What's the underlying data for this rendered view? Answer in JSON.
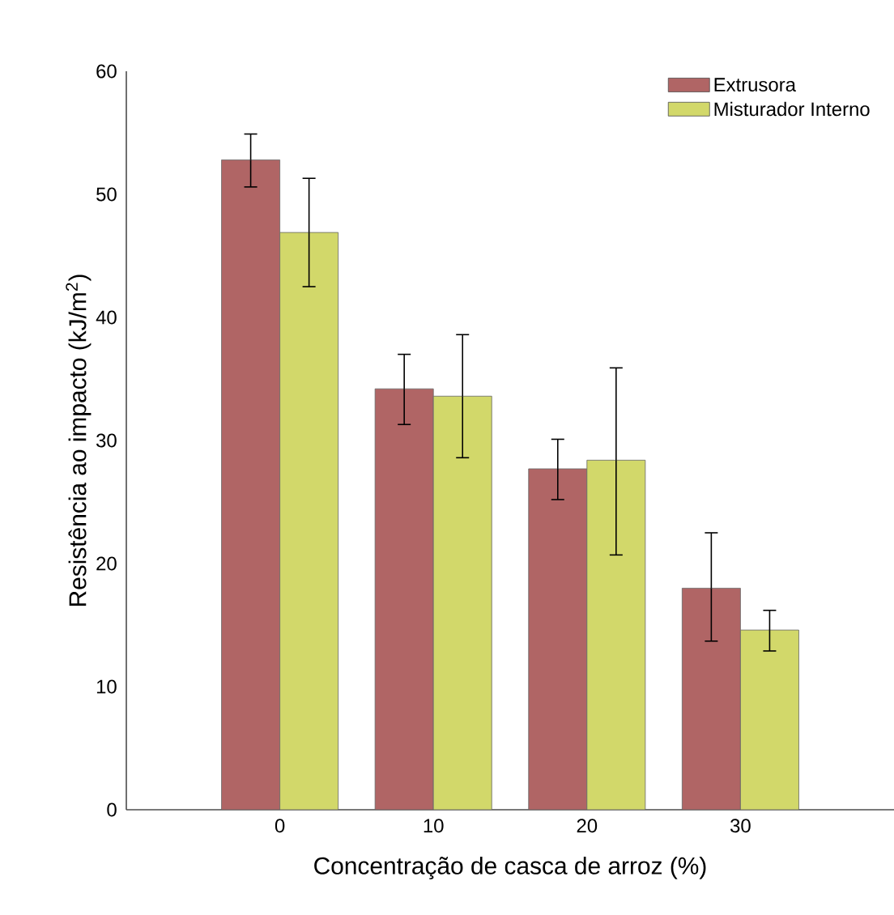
{
  "chart_data": {
    "type": "bar",
    "xlabel": "Concentração de casca de arroz (%)",
    "ylabel": "Resistência ao impacto (kJ/m$^{2}$)",
    "categories": [
      "0",
      "10",
      "20",
      "30"
    ],
    "series": [
      {
        "name": "Extrusora",
        "color": "#b06565",
        "values": [
          52.8,
          34.2,
          27.7,
          18.0
        ],
        "errors": [
          [
            50.6,
            54.9
          ],
          [
            31.3,
            37.0
          ],
          [
            25.2,
            30.1
          ],
          [
            13.7,
            22.5
          ]
        ]
      },
      {
        "name": "Misturador Interno",
        "color": "#d2d86a",
        "values": [
          46.9,
          33.6,
          28.4,
          14.6
        ],
        "errors": [
          [
            42.5,
            51.3
          ],
          [
            28.6,
            38.6
          ],
          [
            20.7,
            35.9
          ],
          [
            12.9,
            16.2
          ]
        ]
      }
    ],
    "ylim": [
      0,
      60
    ],
    "yticks": [
      0,
      10,
      20,
      30,
      40,
      50,
      60
    ],
    "legend": "top right",
    "grid": false
  }
}
